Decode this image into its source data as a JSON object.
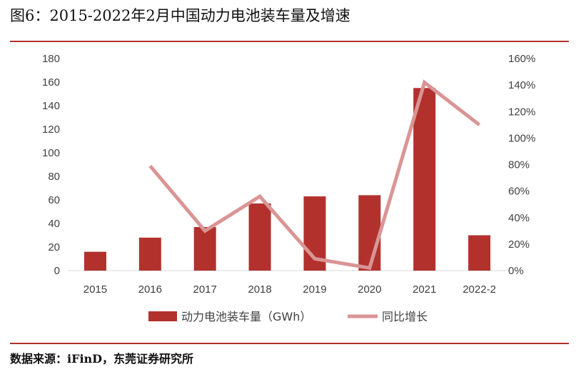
{
  "header": {
    "title": "图6：2015-2022年2月中国动力电池装车量及增速"
  },
  "footer": {
    "source": "数据来源：iFinD，东莞证券研究所"
  },
  "chart_data": {
    "type": "bar",
    "categories": [
      "2015",
      "2016",
      "2017",
      "2018",
      "2019",
      "2020",
      "2021",
      "2022-2"
    ],
    "series": [
      {
        "name": "动力电池装车量（GWh）",
        "type": "bar",
        "axis": "left",
        "color": "#b2312d",
        "values": [
          16,
          28,
          37,
          57,
          63,
          64,
          155,
          30
        ]
      },
      {
        "name": "同比增长",
        "type": "line",
        "axis": "right",
        "color": "#d99594",
        "values": [
          null,
          0.79,
          0.3,
          0.56,
          0.09,
          0.02,
          1.42,
          1.1
        ]
      }
    ],
    "ylim_left": [
      0,
      180
    ],
    "yticks_left": [
      "0",
      "20",
      "40",
      "60",
      "80",
      "100",
      "120",
      "140",
      "160",
      "180"
    ],
    "ylim_right": [
      0,
      1.6
    ],
    "yticks_right": [
      "0%",
      "20%",
      "40%",
      "60%",
      "80%",
      "100%",
      "120%",
      "140%",
      "160%"
    ],
    "grid": false,
    "legend_position": "bottom"
  }
}
